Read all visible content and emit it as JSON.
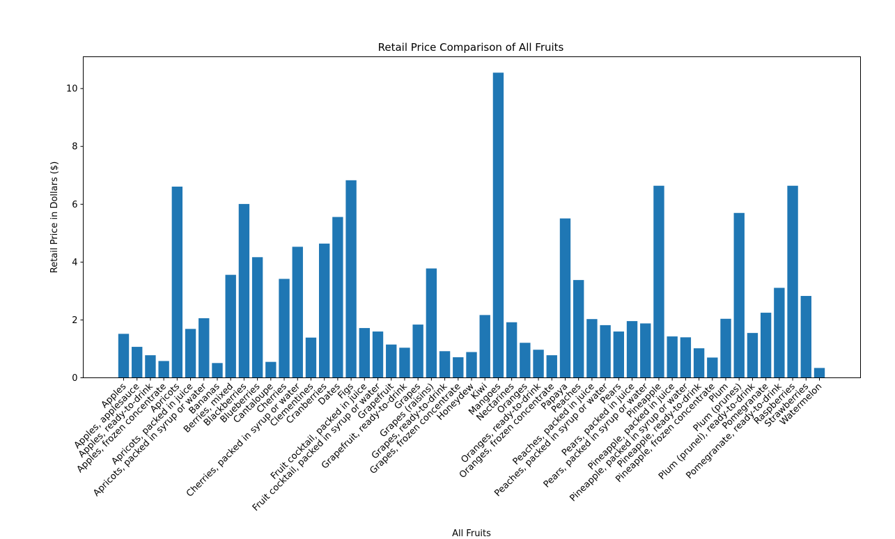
{
  "chart_data": {
    "type": "bar",
    "title": "Retail Price Comparison of All Fruits",
    "xlabel": "All Fruits",
    "ylabel": "Retail Price in Dollars ($)",
    "ylim": [
      0,
      11.1
    ],
    "yticks": [
      0,
      2,
      4,
      6,
      8,
      10
    ],
    "grid": false,
    "bar_color": "#1f77b4",
    "categories": [
      "Apples",
      "Apples, applesauce",
      "Apples, ready-to-drink",
      "Apples, frozen concentrate",
      "Apricots",
      "Apricots, packed in juice",
      "Apricots, packed in syrup or water",
      "Bananas",
      "Berries, mixed",
      "Blackberries",
      "Blueberries",
      "Cantaloupe",
      "Cherries",
      "Cherries, packed in syrup or water",
      "Clementines",
      "Cranberries",
      "Dates",
      "Figs",
      "Fruit cocktail, packed in juice",
      "Fruit cocktail, packed in syrup or water",
      "Grapefruit",
      "Grapefruit, ready-to-drink",
      "Grapes",
      "Grapes (raisins)",
      "Grapes, ready-to-drink",
      "Grapes, frozen concentrate",
      "Honeydew",
      "Kiwi",
      "Mangoes",
      "Nectarines",
      "Oranges",
      "Oranges, ready-to-drink",
      "Oranges, frozen concentrate",
      "Papaya",
      "Peaches",
      "Peaches, packed in juice",
      "Peaches, packed in syrup or water",
      "Pears",
      "Pears, packed in juice",
      "Pears, packed in syrup or water",
      "Pineapple",
      "Pineapple, packed in juice",
      "Pineapple, packed in syrup or water",
      "Pineapple, ready-to-drink",
      "Pineapple, frozen concentrate",
      "Plum",
      "Plum (prunes)",
      "Plum (prunel), ready-to-drink",
      "Pomegranate",
      "Pomegranate, ready-to-drink",
      "Raspberries",
      "Strawberries",
      "Watermelon"
    ],
    "values": [
      1.52,
      1.07,
      0.78,
      0.58,
      6.61,
      1.69,
      2.06,
      0.51,
      3.56,
      6.01,
      4.17,
      0.55,
      3.42,
      4.53,
      1.39,
      4.64,
      5.56,
      6.83,
      1.72,
      1.6,
      1.15,
      1.04,
      1.84,
      3.78,
      0.92,
      0.71,
      0.89,
      2.17,
      10.55,
      1.92,
      1.21,
      0.97,
      0.78,
      5.51,
      3.38,
      2.03,
      1.82,
      1.6,
      1.96,
      1.88,
      6.64,
      1.43,
      1.4,
      1.02,
      0.7,
      2.04,
      5.7,
      1.55,
      2.25,
      3.11,
      6.64,
      2.83,
      0.34
    ]
  }
}
